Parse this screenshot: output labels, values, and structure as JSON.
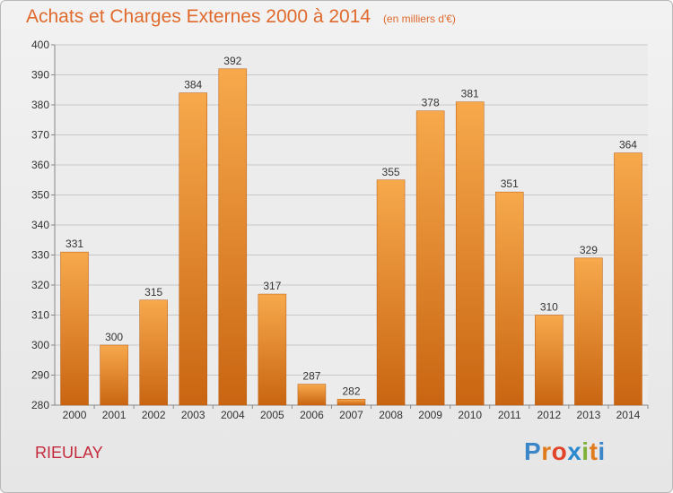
{
  "header": {
    "title": "Achats et Charges Externes 2000 à 2014",
    "subtitle": "(en milliers d'€)"
  },
  "footer": {
    "commune": "RIEULAY",
    "logo_text": "Proxiti",
    "logo_colors": [
      "#3a86c8",
      "#e07b1e",
      "#e2442a",
      "#2a8ad0",
      "#7fb13a",
      "#e07b1e",
      "#3a86c8"
    ]
  },
  "colors": {
    "bar_light": "#f7a94c",
    "bar_dark": "#c96512",
    "title": "#e06a2c",
    "commune": "#c52a3c",
    "grid": "#c8c8c8"
  },
  "chart_data": {
    "type": "bar",
    "title": "Achats et Charges Externes 2000 à 2014",
    "subtitle": "(en milliers d'€)",
    "categories": [
      "2000",
      "2001",
      "2002",
      "2003",
      "2004",
      "2005",
      "2006",
      "2007",
      "2008",
      "2009",
      "2010",
      "2011",
      "2012",
      "2013",
      "2014"
    ],
    "values": [
      331,
      300,
      315,
      384,
      392,
      317,
      287,
      282,
      355,
      378,
      381,
      351,
      310,
      329,
      364
    ],
    "ylim": [
      280,
      400
    ],
    "yticks": [
      280,
      290,
      300,
      310,
      320,
      330,
      340,
      350,
      360,
      370,
      380,
      390,
      400
    ],
    "grid": true,
    "data_labels": true,
    "xlabel": "",
    "ylabel": ""
  }
}
